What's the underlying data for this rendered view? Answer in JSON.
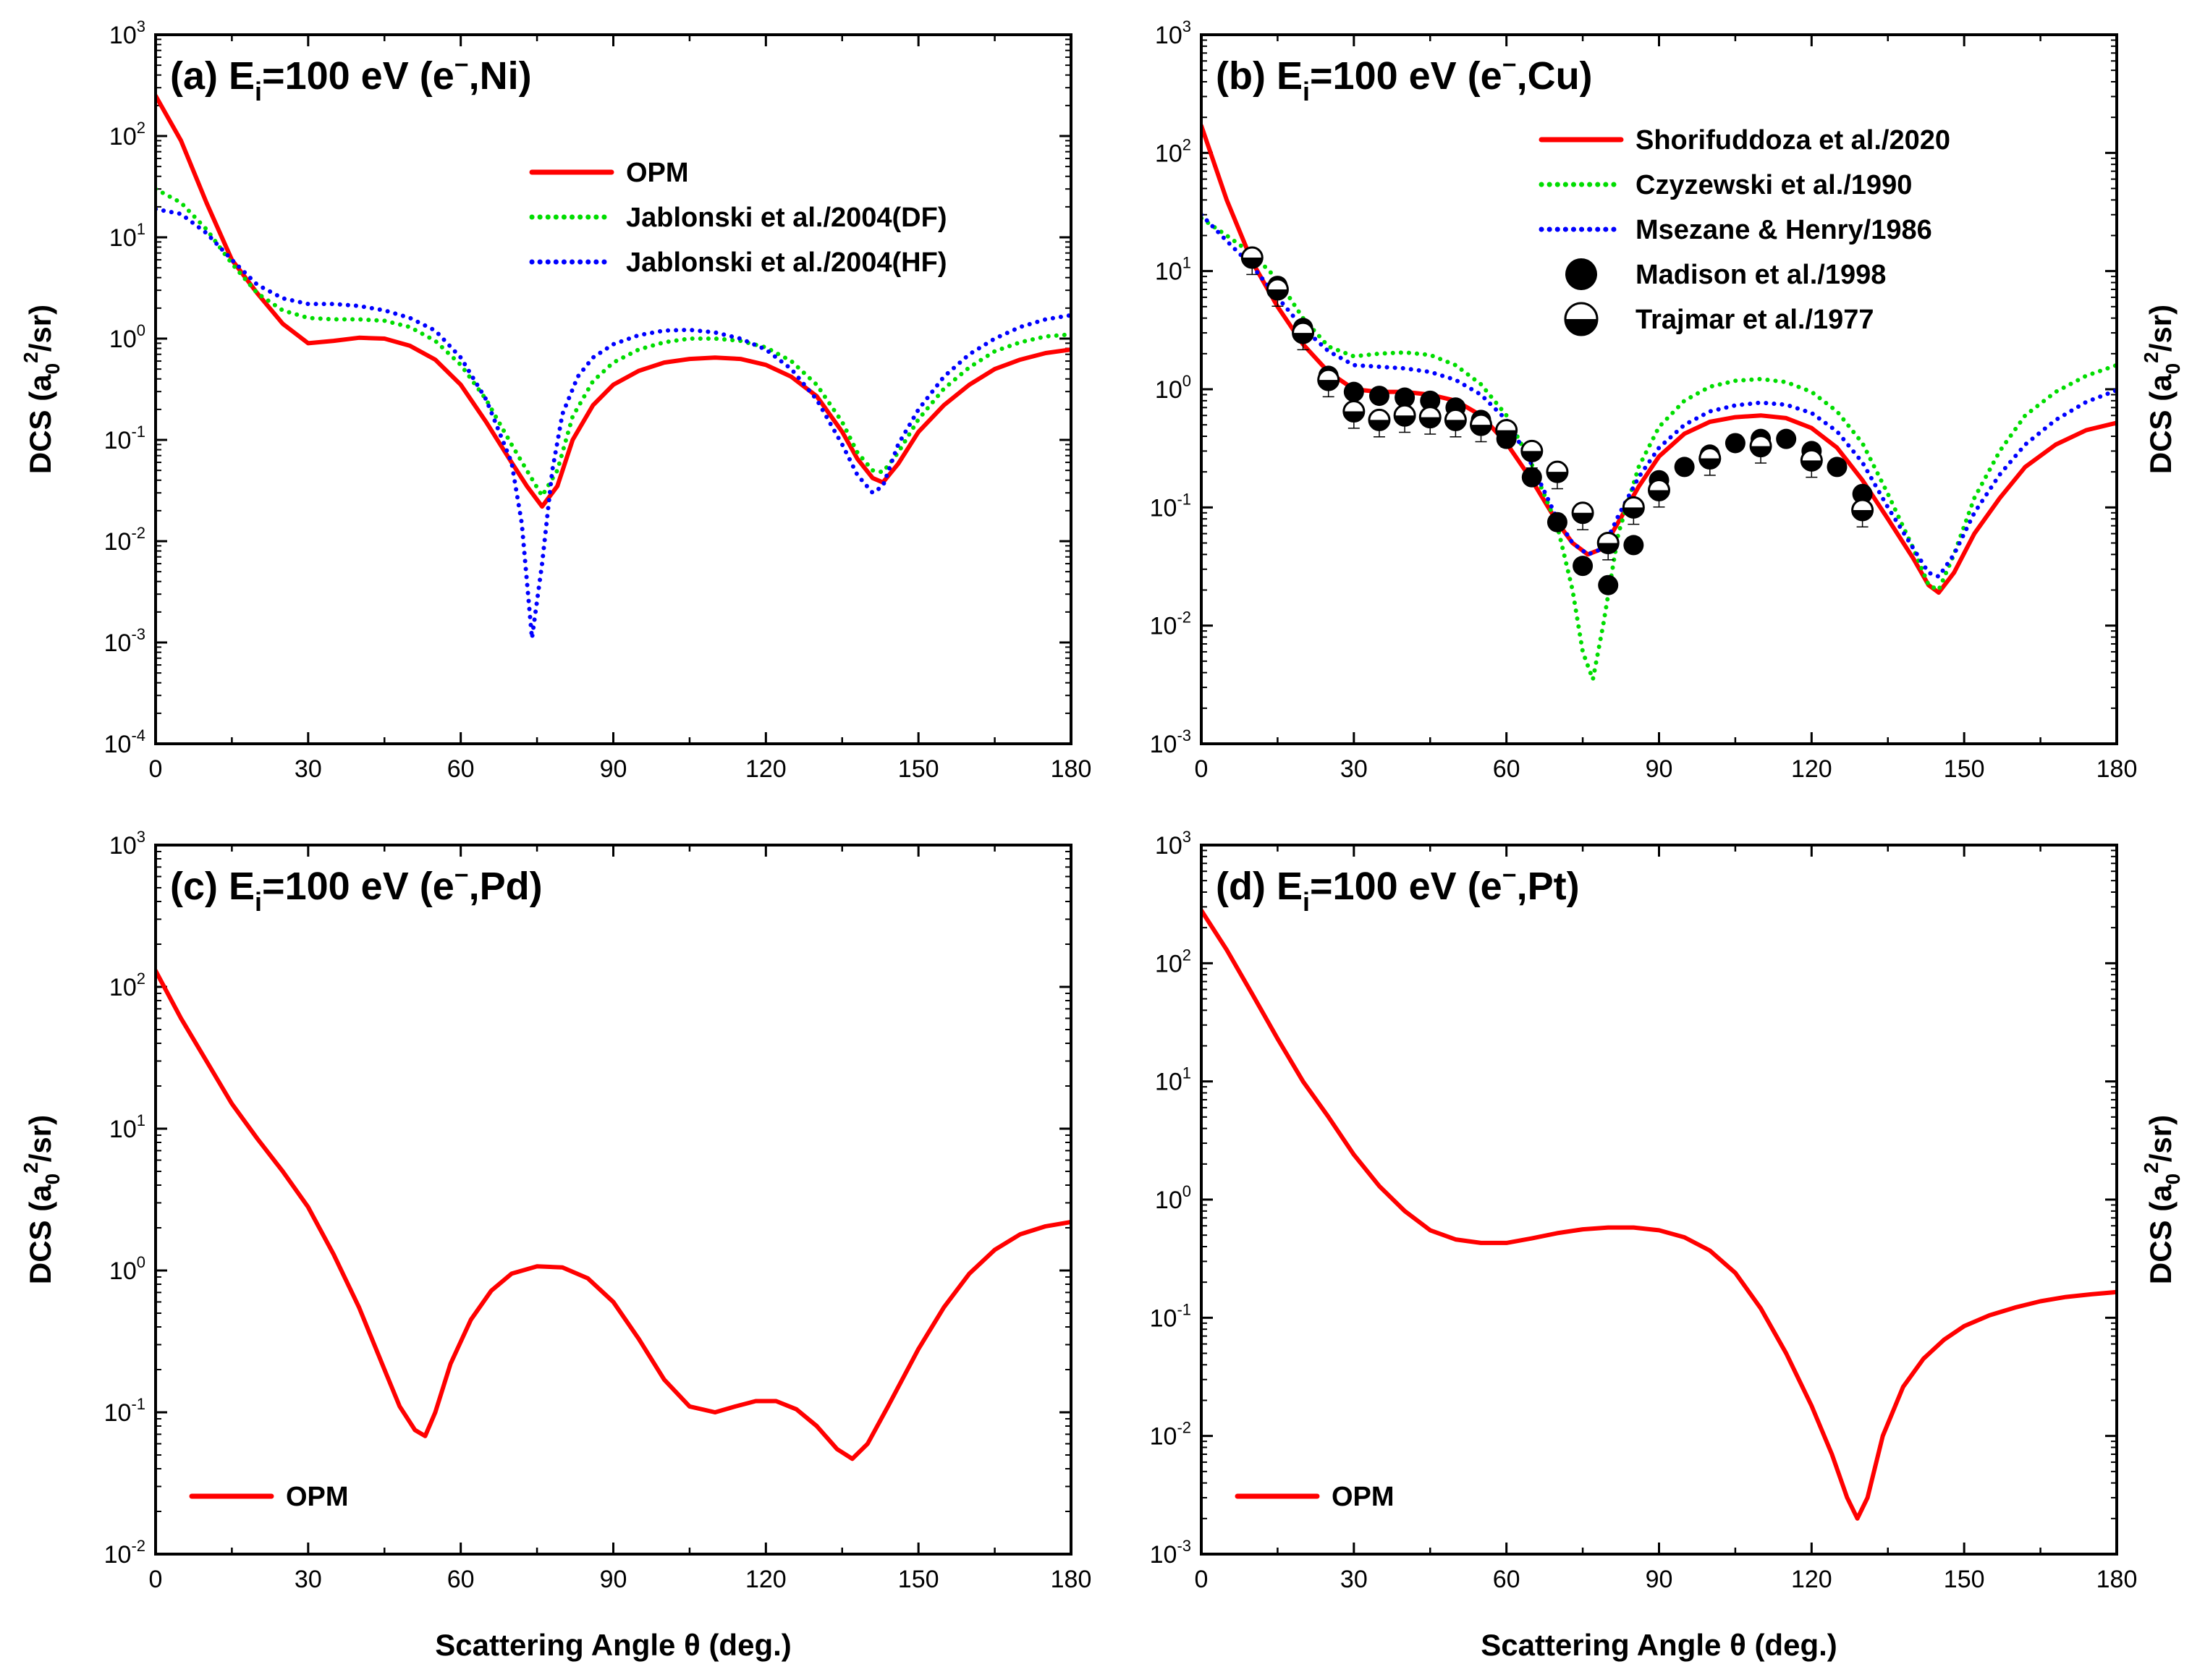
{
  "chart_data": [
    {
      "type": "line",
      "panel": "a",
      "title": "(a) E_i=100 eV (e−,Ni)",
      "title_parts": {
        "prefix": "(a) E",
        "sub": "i",
        "suffix": "=100 eV (e",
        "sup": "−",
        "tail": ",Ni)"
      },
      "xlabel": "",
      "ylabel": {
        "main": "DCS (a",
        "sub": "0",
        "sup": "2",
        "end": "/sr)"
      },
      "xlim": [
        0,
        180
      ],
      "ylim_log10": [
        -4,
        3
      ],
      "xticks": [
        "0",
        "30",
        "60",
        "90",
        "120",
        "150",
        "180"
      ],
      "yticks": [
        {
          "base": "10",
          "exp": "3"
        },
        {
          "base": "10",
          "exp": "2"
        },
        {
          "base": "10",
          "exp": "1"
        },
        {
          "base": "10",
          "exp": "0"
        },
        {
          "base": "10",
          "exp": "-1"
        },
        {
          "base": "10",
          "exp": "-2"
        },
        {
          "base": "10",
          "exp": "-3"
        },
        {
          "base": "10",
          "exp": "-4"
        }
      ],
      "ylabel_side": "left",
      "legend_position": "top-right",
      "series": [
        {
          "name": "OPM",
          "color": "#ff0000",
          "style": "solid",
          "x": [
            0,
            5,
            10,
            15,
            20,
            25,
            30,
            35,
            40,
            45,
            50,
            55,
            60,
            65,
            70,
            73,
            76,
            79,
            82,
            86,
            90,
            95,
            100,
            105,
            110,
            115,
            120,
            125,
            130,
            135,
            138,
            141,
            143,
            146,
            150,
            155,
            160,
            165,
            170,
            175,
            180
          ],
          "y": [
            250,
            90,
            22,
            6,
            2.8,
            1.4,
            0.9,
            0.95,
            1.02,
            1.0,
            0.85,
            0.62,
            0.35,
            0.15,
            0.06,
            0.035,
            0.022,
            0.035,
            0.1,
            0.22,
            0.35,
            0.48,
            0.58,
            0.63,
            0.65,
            0.63,
            0.55,
            0.42,
            0.27,
            0.12,
            0.065,
            0.042,
            0.038,
            0.058,
            0.12,
            0.22,
            0.35,
            0.5,
            0.62,
            0.72,
            0.78
          ]
        },
        {
          "name": "Jablonski et al./2004(DF)",
          "color": "#00dd00",
          "style": "dot",
          "x": [
            0,
            5,
            10,
            15,
            20,
            25,
            30,
            35,
            40,
            45,
            50,
            55,
            60,
            65,
            70,
            73,
            76,
            79,
            82,
            86,
            90,
            95,
            100,
            105,
            110,
            115,
            120,
            125,
            130,
            135,
            138,
            141,
            143,
            146,
            150,
            155,
            160,
            165,
            170,
            175,
            180
          ],
          "y": [
            30,
            22,
            12,
            5.5,
            2.8,
            1.9,
            1.6,
            1.55,
            1.55,
            1.5,
            1.3,
            0.95,
            0.55,
            0.25,
            0.09,
            0.05,
            0.028,
            0.05,
            0.17,
            0.38,
            0.58,
            0.78,
            0.92,
            1.0,
            1.0,
            0.95,
            0.82,
            0.6,
            0.35,
            0.15,
            0.075,
            0.05,
            0.048,
            0.075,
            0.16,
            0.32,
            0.52,
            0.75,
            0.92,
            1.05,
            1.1
          ]
        },
        {
          "name": "Jablonski et al./2004(HF)",
          "color": "#0000ff",
          "style": "dot",
          "x": [
            0,
            5,
            10,
            15,
            20,
            25,
            30,
            35,
            40,
            45,
            50,
            55,
            60,
            65,
            70,
            72,
            74,
            76,
            78,
            80,
            83,
            86,
            90,
            95,
            100,
            105,
            110,
            115,
            120,
            125,
            130,
            135,
            138,
            141,
            143,
            146,
            150,
            155,
            160,
            165,
            170,
            175,
            180
          ],
          "y": [
            19,
            17,
            11,
            6,
            3.4,
            2.5,
            2.2,
            2.2,
            2.1,
            1.9,
            1.6,
            1.2,
            0.65,
            0.25,
            0.06,
            0.015,
            0.0011,
            0.006,
            0.05,
            0.18,
            0.42,
            0.65,
            0.88,
            1.08,
            1.2,
            1.22,
            1.15,
            1.0,
            0.78,
            0.5,
            0.25,
            0.09,
            0.045,
            0.03,
            0.035,
            0.09,
            0.2,
            0.42,
            0.7,
            1.0,
            1.3,
            1.55,
            1.7
          ]
        }
      ]
    },
    {
      "type": "line",
      "panel": "b",
      "title": "(b) E_i=100 eV (e−,Cu)",
      "title_parts": {
        "prefix": "(b) E",
        "sub": "i",
        "suffix": "=100 eV (e",
        "sup": "−",
        "tail": ",Cu)"
      },
      "xlabel": "",
      "ylabel": {
        "main": "DCS (a",
        "sub": "0",
        "sup": "2",
        "end": "/sr)"
      },
      "xlim": [
        0,
        180
      ],
      "ylim_log10": [
        -3,
        3
      ],
      "xticks": [
        "0",
        "30",
        "60",
        "90",
        "120",
        "150",
        "180"
      ],
      "yticks": [
        {
          "base": "10",
          "exp": "3"
        },
        {
          "base": "10",
          "exp": "2"
        },
        {
          "base": "10",
          "exp": "1"
        },
        {
          "base": "10",
          "exp": "0"
        },
        {
          "base": "10",
          "exp": "-1"
        },
        {
          "base": "10",
          "exp": "-2"
        },
        {
          "base": "10",
          "exp": "-3"
        }
      ],
      "ylabel_side": "right",
      "legend_position": "top-right",
      "series": [
        {
          "name": "Shorifuddoza et al./2020",
          "color": "#ff0000",
          "style": "solid",
          "x": [
            0,
            5,
            10,
            15,
            20,
            25,
            30,
            35,
            40,
            45,
            50,
            55,
            60,
            65,
            70,
            73,
            76,
            79,
            82,
            86,
            90,
            95,
            100,
            105,
            110,
            115,
            120,
            125,
            130,
            135,
            140,
            143,
            145,
            148,
            152,
            157,
            162,
            168,
            174,
            180
          ],
          "y": [
            170,
            40,
            12,
            5,
            2.4,
            1.4,
            1.0,
            0.95,
            0.95,
            0.9,
            0.8,
            0.6,
            0.35,
            0.17,
            0.075,
            0.05,
            0.04,
            0.045,
            0.075,
            0.15,
            0.27,
            0.42,
            0.53,
            0.58,
            0.6,
            0.57,
            0.47,
            0.32,
            0.17,
            0.08,
            0.037,
            0.022,
            0.019,
            0.028,
            0.06,
            0.12,
            0.22,
            0.34,
            0.45,
            0.52
          ]
        },
        {
          "name": "Czyzewski et al./1990",
          "color": "#00dd00",
          "style": "dot",
          "x": [
            0,
            5,
            10,
            15,
            20,
            25,
            30,
            35,
            40,
            45,
            50,
            55,
            60,
            65,
            70,
            73,
            75,
            77,
            79,
            82,
            86,
            90,
            95,
            100,
            105,
            110,
            115,
            120,
            125,
            130,
            135,
            140,
            143,
            145,
            148,
            152,
            157,
            162,
            168,
            174,
            180
          ],
          "y": [
            28,
            20,
            14,
            8.5,
            4,
            2.3,
            1.9,
            2.0,
            2.05,
            1.95,
            1.6,
            1.1,
            0.6,
            0.23,
            0.07,
            0.02,
            0.006,
            0.0035,
            0.01,
            0.06,
            0.22,
            0.48,
            0.8,
            1.05,
            1.18,
            1.22,
            1.15,
            0.95,
            0.65,
            0.35,
            0.13,
            0.045,
            0.022,
            0.02,
            0.04,
            0.12,
            0.3,
            0.6,
            0.95,
            1.3,
            1.6
          ]
        },
        {
          "name": "Msezane & Henry/1986",
          "color": "#0000ff",
          "style": "dot",
          "x": [
            0,
            5,
            10,
            15,
            20,
            25,
            30,
            35,
            40,
            45,
            50,
            55,
            60,
            65,
            70,
            73,
            76,
            79,
            82,
            86,
            90,
            95,
            100,
            105,
            110,
            115,
            120,
            125,
            130,
            135,
            140,
            143,
            145,
            148,
            152,
            157,
            162,
            168,
            174,
            180
          ],
          "y": [
            30,
            18,
            11,
            6,
            3.3,
            2.1,
            1.6,
            1.55,
            1.5,
            1.4,
            1.2,
            0.9,
            0.55,
            0.23,
            0.08,
            0.05,
            0.04,
            0.045,
            0.085,
            0.18,
            0.32,
            0.5,
            0.65,
            0.73,
            0.77,
            0.74,
            0.63,
            0.44,
            0.24,
            0.1,
            0.045,
            0.028,
            0.026,
            0.04,
            0.09,
            0.19,
            0.34,
            0.55,
            0.78,
            0.98
          ]
        },
        {
          "name": "Madison et al./1998",
          "marker": "filled-circle",
          "color": "#000000",
          "x": [
            10,
            15,
            20,
            25,
            30,
            35,
            40,
            45,
            50,
            55,
            60,
            65,
            70,
            75,
            80,
            85,
            90,
            95,
            100,
            105,
            110,
            115,
            120,
            125,
            130
          ],
          "y": [
            13,
            7.5,
            3.3,
            1.3,
            0.95,
            0.88,
            0.85,
            0.8,
            0.7,
            0.55,
            0.38,
            0.18,
            0.075,
            0.032,
            0.022,
            0.048,
            0.17,
            0.22,
            0.28,
            0.35,
            0.38,
            0.38,
            0.3,
            0.22,
            0.13
          ]
        },
        {
          "name": "Trajmar et al./1977",
          "marker": "half-circle",
          "color": "#000000",
          "x": [
            10,
            15,
            20,
            25,
            30,
            35,
            40,
            45,
            50,
            55,
            60,
            65,
            70,
            75,
            80,
            85,
            90,
            100,
            110,
            120,
            130
          ],
          "y": [
            13,
            7,
            3,
            1.2,
            0.65,
            0.55,
            0.6,
            0.58,
            0.55,
            0.5,
            0.45,
            0.3,
            0.2,
            0.09,
            0.05,
            0.1,
            0.14,
            0.26,
            0.33,
            0.25,
            0.095
          ]
        }
      ]
    },
    {
      "type": "line",
      "panel": "c",
      "title": "(c) E_i=100 eV (e−,Pd)",
      "title_parts": {
        "prefix": "(c) E",
        "sub": "i",
        "suffix": "=100 eV (e",
        "sup": "−",
        "tail": ",Pd)"
      },
      "xlabel": "Scattering Angle θ (deg.)",
      "ylabel": {
        "main": "DCS (a",
        "sub": "0",
        "sup": "2",
        "end": "/sr)"
      },
      "xlim": [
        0,
        180
      ],
      "ylim_log10": [
        -2,
        3
      ],
      "xticks": [
        "0",
        "30",
        "60",
        "90",
        "120",
        "150",
        "180"
      ],
      "yticks": [
        {
          "base": "10",
          "exp": "3"
        },
        {
          "base": "10",
          "exp": "2"
        },
        {
          "base": "10",
          "exp": "1"
        },
        {
          "base": "10",
          "exp": "0"
        },
        {
          "base": "10",
          "exp": "-1"
        },
        {
          "base": "10",
          "exp": "-2"
        }
      ],
      "ylabel_side": "left",
      "legend_position": "bottom-left",
      "series": [
        {
          "name": "OPM",
          "color": "#ff0000",
          "style": "solid",
          "x": [
            0,
            5,
            10,
            15,
            20,
            25,
            30,
            35,
            40,
            45,
            48,
            51,
            53,
            55,
            58,
            62,
            66,
            70,
            75,
            80,
            85,
            90,
            95,
            100,
            105,
            110,
            114,
            118,
            122,
            126,
            130,
            134,
            137,
            140,
            144,
            150,
            155,
            160,
            165,
            170,
            175,
            180
          ],
          "y": [
            130,
            60,
            30,
            15,
            8.5,
            5,
            2.8,
            1.3,
            0.55,
            0.2,
            0.11,
            0.075,
            0.068,
            0.1,
            0.22,
            0.45,
            0.72,
            0.95,
            1.07,
            1.05,
            0.88,
            0.6,
            0.33,
            0.17,
            0.11,
            0.1,
            0.11,
            0.12,
            0.12,
            0.105,
            0.08,
            0.055,
            0.047,
            0.06,
            0.11,
            0.28,
            0.55,
            0.95,
            1.4,
            1.8,
            2.05,
            2.2
          ]
        }
      ]
    },
    {
      "type": "line",
      "panel": "d",
      "title": "(d) E_i=100 eV (e−,Pt)",
      "title_parts": {
        "prefix": "(d) E",
        "sub": "i",
        "suffix": "=100 eV (e",
        "sup": "−",
        "tail": ",Pt)"
      },
      "xlabel": "Scattering Angle θ (deg.)",
      "ylabel": {
        "main": "DCS (a",
        "sub": "0",
        "sup": "2",
        "end": "/sr)"
      },
      "xlim": [
        0,
        180
      ],
      "ylim_log10": [
        -3,
        3
      ],
      "xticks": [
        "0",
        "30",
        "60",
        "90",
        "120",
        "150",
        "180"
      ],
      "yticks": [
        {
          "base": "10",
          "exp": "3"
        },
        {
          "base": "10",
          "exp": "2"
        },
        {
          "base": "10",
          "exp": "1"
        },
        {
          "base": "10",
          "exp": "0"
        },
        {
          "base": "10",
          "exp": "-1"
        },
        {
          "base": "10",
          "exp": "-2"
        },
        {
          "base": "10",
          "exp": "-3"
        }
      ],
      "ylabel_side": "right",
      "legend_position": "bottom-left",
      "series": [
        {
          "name": "OPM",
          "color": "#ff0000",
          "style": "solid",
          "x": [
            0,
            5,
            10,
            15,
            20,
            25,
            30,
            35,
            40,
            45,
            50,
            55,
            60,
            65,
            70,
            75,
            80,
            85,
            90,
            95,
            100,
            105,
            110,
            115,
            120,
            124,
            127,
            129,
            131,
            134,
            138,
            142,
            146,
            150,
            155,
            160,
            165,
            170,
            175,
            180
          ],
          "y": [
            280,
            130,
            55,
            23,
            10,
            5,
            2.4,
            1.3,
            0.8,
            0.55,
            0.46,
            0.43,
            0.43,
            0.47,
            0.52,
            0.56,
            0.58,
            0.58,
            0.55,
            0.48,
            0.37,
            0.24,
            0.12,
            0.05,
            0.018,
            0.007,
            0.003,
            0.002,
            0.003,
            0.01,
            0.026,
            0.045,
            0.065,
            0.085,
            0.105,
            0.122,
            0.138,
            0.15,
            0.158,
            0.165
          ]
        }
      ]
    }
  ]
}
